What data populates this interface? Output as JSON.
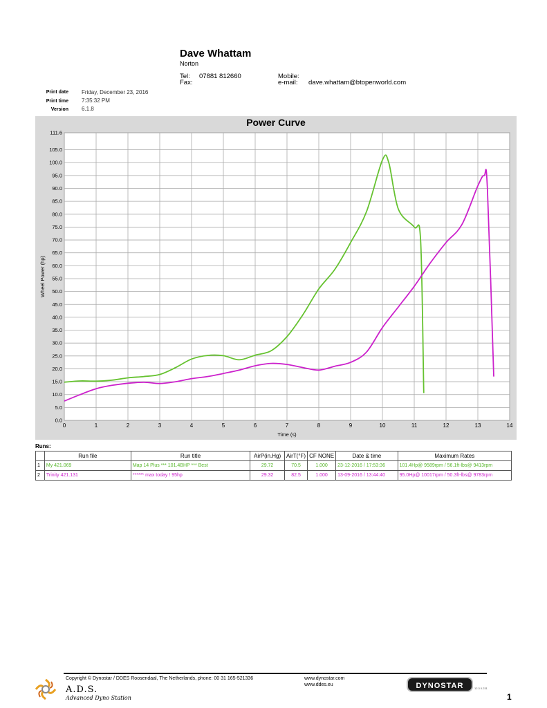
{
  "header": {
    "name": "Dave Whattam",
    "subtitle": "Norton",
    "tel_label": "Tel:",
    "tel_value": "07881 812660",
    "fax_label": "Fax:",
    "mobile_label": "Mobile:",
    "email_label": "e-mail:",
    "email_value": "dave.whattam@btopenworld.com"
  },
  "meta": {
    "print_date_label": "Print date",
    "print_date": "Friday, December 23, 2016",
    "print_time_label": "Print time",
    "print_time": "7:35:32 PM",
    "version_label": "Version",
    "version": "6.1.8"
  },
  "chart_data": {
    "type": "line",
    "title": "Power Curve",
    "xlabel": "Time (s)",
    "ylabel": "Wheel Power (hp)",
    "xlim": [
      0,
      14
    ],
    "ylim": [
      0,
      111.6
    ],
    "x_ticks": [
      "0",
      "1",
      "2",
      "3",
      "4",
      "5",
      "6",
      "7",
      "8",
      "9",
      "10",
      "11",
      "12",
      "13",
      "14"
    ],
    "y_ticks": [
      "0.0",
      "5.0",
      "10.0",
      "15.0",
      "20.0",
      "25.0",
      "30.0",
      "35.0",
      "40.0",
      "45.0",
      "50.0",
      "55.0",
      "60.0",
      "65.0",
      "70.0",
      "75.0",
      "80.0",
      "85.0",
      "90.0",
      "95.0",
      "100.0",
      "105.0",
      "111.6"
    ],
    "y_tick_values": [
      0,
      5,
      10,
      15,
      20,
      25,
      30,
      35,
      40,
      45,
      50,
      55,
      60,
      65,
      70,
      75,
      80,
      85,
      90,
      95,
      100,
      105,
      111.6
    ],
    "grid": true,
    "series": [
      {
        "color": "#66c230",
        "points": [
          [
            0,
            14.8
          ],
          [
            0.5,
            15.3
          ],
          [
            1,
            15.2
          ],
          [
            1.5,
            15.6
          ],
          [
            2,
            16.5
          ],
          [
            2.5,
            17
          ],
          [
            3,
            17.8
          ],
          [
            3.5,
            20.5
          ],
          [
            4,
            23.8
          ],
          [
            4.5,
            25.2
          ],
          [
            5,
            25.1
          ],
          [
            5.5,
            23.5
          ],
          [
            6,
            25.3
          ],
          [
            6.5,
            27
          ],
          [
            7,
            32.5
          ],
          [
            7.5,
            41
          ],
          [
            8,
            51
          ],
          [
            8.5,
            58.5
          ],
          [
            9,
            69
          ],
          [
            9.5,
            81
          ],
          [
            10,
            101
          ],
          [
            10.2,
            100
          ],
          [
            10.5,
            82
          ],
          [
            11,
            75
          ],
          [
            11.2,
            70
          ],
          [
            11.3,
            10.6
          ]
        ]
      },
      {
        "color": "#cc22cc",
        "points": [
          [
            0,
            7.5
          ],
          [
            0.5,
            10
          ],
          [
            1,
            12.3
          ],
          [
            1.5,
            13.6
          ],
          [
            2,
            14.4
          ],
          [
            2.5,
            14.8
          ],
          [
            3,
            14.3
          ],
          [
            3.5,
            15
          ],
          [
            4,
            16.2
          ],
          [
            4.5,
            17
          ],
          [
            5,
            18.2
          ],
          [
            5.5,
            19.5
          ],
          [
            6,
            21.2
          ],
          [
            6.5,
            22.1
          ],
          [
            7,
            21.7
          ],
          [
            7.5,
            20.5
          ],
          [
            8,
            19.5
          ],
          [
            8.5,
            21
          ],
          [
            9,
            22.5
          ],
          [
            9.5,
            26.5
          ],
          [
            10,
            36
          ],
          [
            10.5,
            44
          ],
          [
            11,
            52
          ],
          [
            11.5,
            61
          ],
          [
            12,
            69
          ],
          [
            12.5,
            76
          ],
          [
            13,
            91
          ],
          [
            13.2,
            95
          ],
          [
            13.3,
            90
          ],
          [
            13.5,
            17
          ]
        ]
      }
    ]
  },
  "runs": {
    "label": "Runs:",
    "columns": [
      "",
      "Run file",
      "Run title",
      "AirP(in.Hg)",
      "AirT(°F)",
      "CF NONE",
      "Date & time",
      "Maximum Rates"
    ],
    "rows": [
      {
        "idx": "1",
        "file": "My 421.069",
        "title": "Map 14 Plus *** 101.4BHP *** Best",
        "airp": "29.72",
        "airt": "70.5",
        "cf": "1.000",
        "date": "23-12-2016 / 17:53:36",
        "max": "101.4Hp@ 9589rpm / 56.1ft-lbs@ 9413rpm",
        "color": "green"
      },
      {
        "idx": "2",
        "file": "Trinity 421.131",
        "title": "******  max today ! 95hp",
        "airp": "29.32",
        "airt": "82.5",
        "cf": "1.000",
        "date": "13-09-2016 / 13:44:40",
        "max": "95.0Hp@ 10017rpm / 50.3ft-lbs@ 9783rpm",
        "color": "magenta"
      }
    ]
  },
  "footer": {
    "copyright": "Copyright ©  Dynostar / DDES  Roosendaal, The Netherlands, phone: 00 31 165-521336",
    "web1": "www.dynostar.com",
    "web2": "www.ddes.eu",
    "ads": "A.D.S.",
    "ads_sub": "Advanced Dyno Station",
    "logo": "DYNOSTAR",
    "logo_small": "12.3 0.231",
    "page": "1"
  }
}
